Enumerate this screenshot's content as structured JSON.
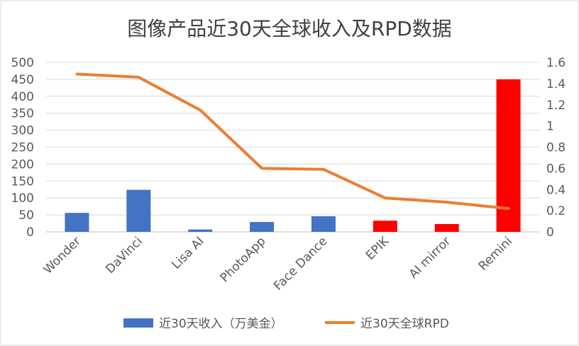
{
  "chart_data": {
    "type": "bar",
    "title": "图像产品近30天全球收入及RPD数据",
    "categories": [
      "Wonder",
      "DaVinci",
      "Lisa AI",
      "PhotoApp",
      "Face Dance",
      "EPIK",
      "AI mirror",
      "Remini"
    ],
    "series": [
      {
        "name": "近30天收入（万美金）",
        "chart_type": "bar",
        "axis": "left",
        "values": [
          56,
          124,
          7,
          29,
          46,
          33,
          23,
          450
        ],
        "colors": [
          "#4472C4",
          "#4472C4",
          "#4472C4",
          "#4472C4",
          "#4472C4",
          "#FF0000",
          "#FF0000",
          "#FF0000"
        ]
      },
      {
        "name": "近30天全球RPD",
        "chart_type": "line",
        "axis": "right",
        "values": [
          1.49,
          1.46,
          1.15,
          0.6,
          0.59,
          0.32,
          0.28,
          0.22
        ],
        "color": "#ED7D31"
      }
    ],
    "y_left": {
      "min": 0,
      "max": 500,
      "step": 50,
      "ticks": [
        "0",
        "50",
        "100",
        "150",
        "200",
        "250",
        "300",
        "350",
        "400",
        "450",
        "500"
      ]
    },
    "y_right": {
      "min": 0,
      "max": 1.6,
      "step": 0.2,
      "ticks": [
        "0",
        "0.2",
        "0.4",
        "0.6",
        "0.8",
        "1",
        "1.2",
        "1.4",
        "1.6"
      ]
    },
    "grid": true,
    "legend_position": "bottom"
  }
}
